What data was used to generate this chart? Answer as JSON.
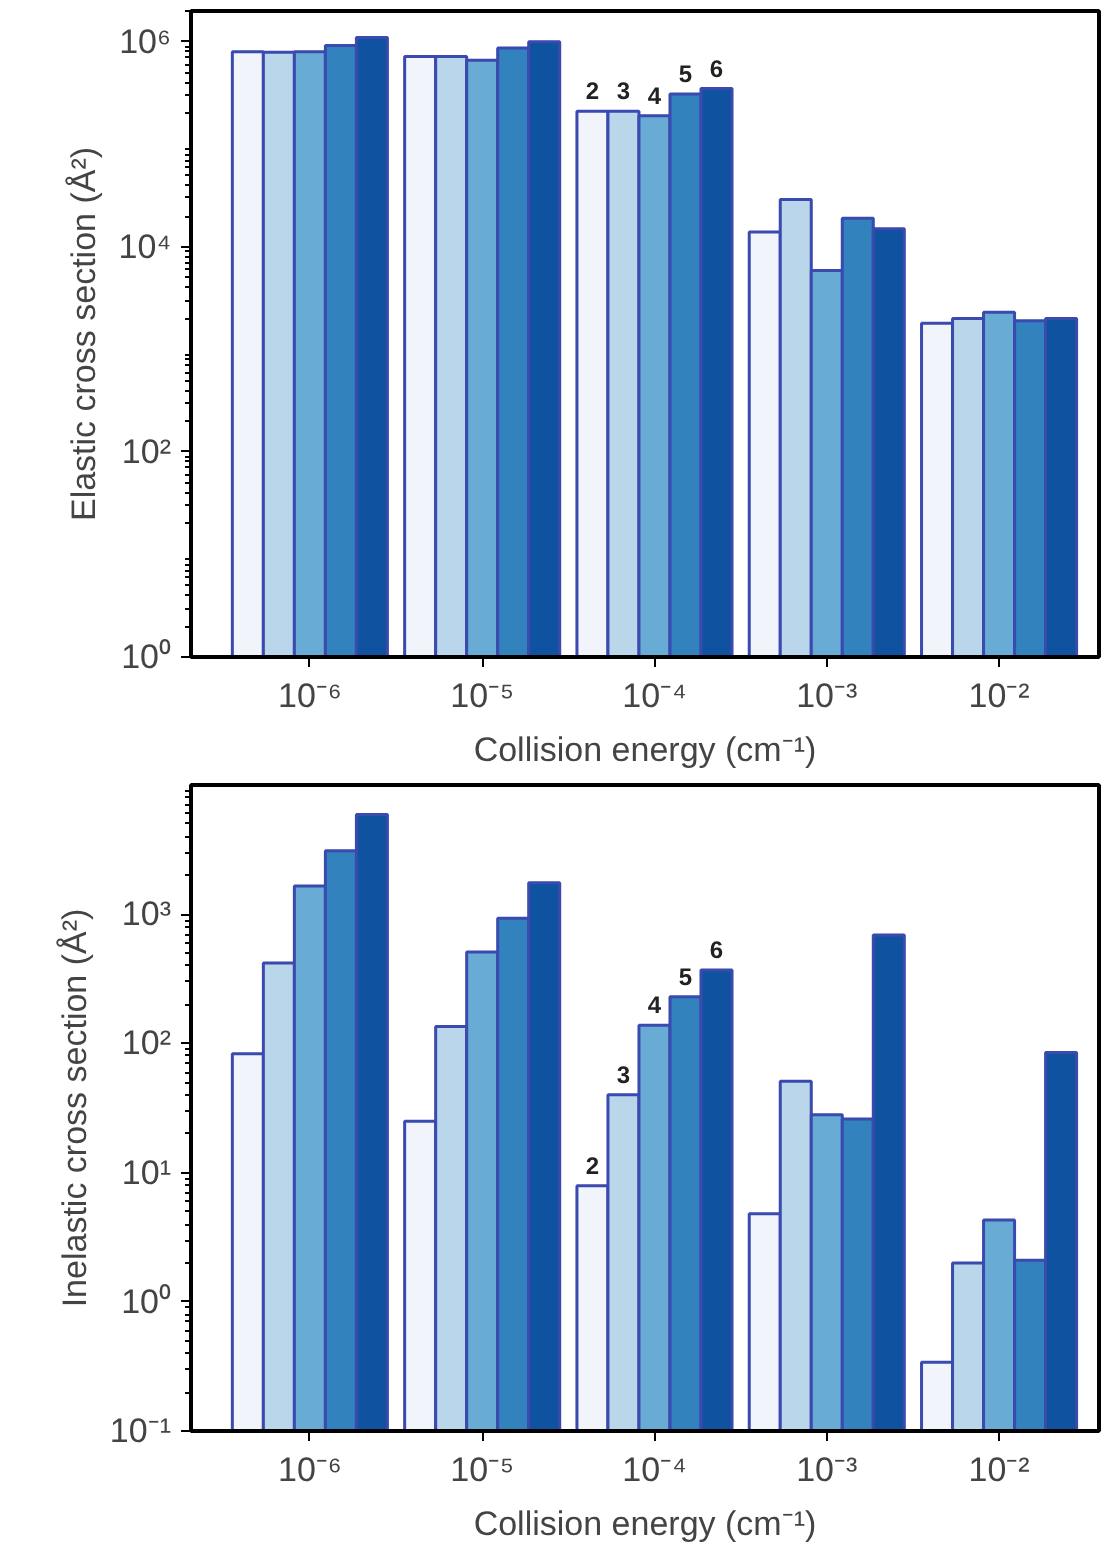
{
  "chart_data": [
    {
      "type": "bar",
      "xlabel": "Collision energy (cm⁻¹)",
      "ylabel": "Elastic cross section (Å²)",
      "log": "y",
      "grid": false,
      "categories": [
        "10⁻⁶",
        "10⁻⁵",
        "10⁻⁴",
        "10⁻³",
        "10⁻²"
      ],
      "ylim": [
        1,
        2000000
      ],
      "yticks": [
        {
          "value": 1,
          "label": "10⁰"
        },
        {
          "value": 100,
          "label": "10²"
        },
        {
          "value": 10000,
          "label": "10⁴"
        },
        {
          "value": 1000000,
          "label": "10⁶"
        }
      ],
      "series": [
        {
          "name": "2",
          "color": "#f1f4fa",
          "values": [
            800000,
            720000,
            210000,
            14000,
            1800
          ]
        },
        {
          "name": "3",
          "color": "#bad6ea",
          "values": [
            790000,
            720000,
            210000,
            29000,
            2000
          ]
        },
        {
          "name": "4",
          "color": "#68acd5",
          "values": [
            800000,
            660000,
            190000,
            5900,
            2300
          ]
        },
        {
          "name": "5",
          "color": "#3182bd",
          "values": [
            920000,
            870000,
            310000,
            19000,
            1900
          ]
        },
        {
          "name": "6",
          "color": "#0e52a0",
          "values": [
            1100000,
            1000000,
            350000,
            15000,
            2000
          ]
        }
      ]
    },
    {
      "type": "bar",
      "xlabel": "Collision energy (cm⁻¹)",
      "ylabel": "Inelastic cross section (Å²)",
      "log": "y",
      "grid": false,
      "categories": [
        "10⁻⁶",
        "10⁻⁵",
        "10⁻⁴",
        "10⁻³",
        "10⁻²"
      ],
      "ylim": [
        0.1,
        10000
      ],
      "yticks": [
        {
          "value": 0.1,
          "label": "10⁻¹"
        },
        {
          "value": 1,
          "label": "10⁰"
        },
        {
          "value": 10,
          "label": "10¹"
        },
        {
          "value": 100,
          "label": "10²"
        },
        {
          "value": 1000,
          "label": "10³"
        }
      ],
      "series": [
        {
          "name": "2",
          "color": "#f1f4fa",
          "values": [
            83,
            25,
            7.9,
            4.8,
            0.34
          ]
        },
        {
          "name": "3",
          "color": "#bad6ea",
          "values": [
            420,
            135,
            40,
            51,
            2.0
          ]
        },
        {
          "name": "4",
          "color": "#68acd5",
          "values": [
            1650,
            510,
            138,
            28,
            4.3
          ]
        },
        {
          "name": "5",
          "color": "#3182bd",
          "values": [
            3100,
            930,
            230,
            26,
            2.1
          ]
        },
        {
          "name": "6",
          "color": "#0e52a0",
          "values": [
            5900,
            1750,
            370,
            690,
            85
          ]
        }
      ]
    }
  ]
}
